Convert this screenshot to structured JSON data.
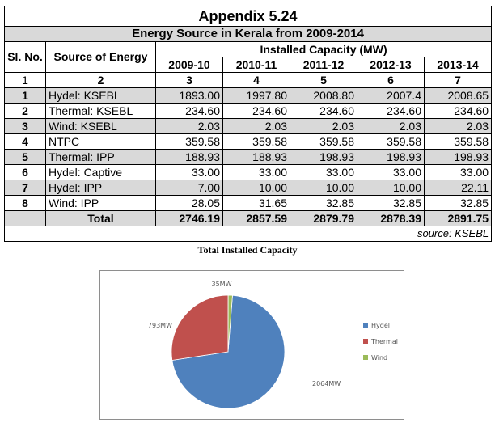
{
  "appendix_title": "Appendix 5.24",
  "table_title": "Energy Source in Kerala from 2009-2014",
  "headers": {
    "sl_no": "Sl. No.",
    "source": "Source of Energy",
    "capacity": "Installed Capacity (MW)",
    "years": [
      "2009-10",
      "2010-11",
      "2011-12",
      "2012-13",
      "2013-14"
    ]
  },
  "column_numbers": [
    "1",
    "2",
    "3",
    "4",
    "5",
    "6",
    "7"
  ],
  "rows": [
    {
      "sl": "1",
      "source": "Hydel: KSEBL",
      "values": [
        "1893.00",
        "1997.80",
        "2008.80",
        "2007.4",
        "2008.65"
      ]
    },
    {
      "sl": "2",
      "source": "Thermal: KSEBL",
      "values": [
        "234.60",
        "234.60",
        "234.60",
        "234.60",
        "234.60"
      ]
    },
    {
      "sl": "3",
      "source": "Wind: KSEBL",
      "values": [
        "2.03",
        "2.03",
        "2.03",
        "2.03",
        "2.03"
      ]
    },
    {
      "sl": "4",
      "source": "NTPC",
      "values": [
        "359.58",
        "359.58",
        "359.58",
        "359.58",
        "359.58"
      ]
    },
    {
      "sl": "5",
      "source": "Thermal: IPP",
      "values": [
        "188.93",
        "188.93",
        "198.93",
        "198.93",
        "198.93"
      ]
    },
    {
      "sl": "6",
      "source": "Hydel: Captive",
      "values": [
        "33.00",
        "33.00",
        "33.00",
        "33.00",
        "33.00"
      ]
    },
    {
      "sl": "7",
      "source": "Hydel: IPP",
      "values": [
        "7.00",
        "10.00",
        "10.00",
        "10.00",
        "22.11"
      ]
    },
    {
      "sl": "8",
      "source": "Wind: IPP",
      "values": [
        "28.05",
        "31.65",
        "32.85",
        "32.85",
        "32.85"
      ]
    }
  ],
  "total": {
    "label": "Total",
    "values": [
      "2746.19",
      "2857.59",
      "2879.79",
      "2878.39",
      "2891.75"
    ]
  },
  "source_note": "source: KSEBL",
  "chart_data": {
    "type": "pie",
    "title": "Total Installed Capacity",
    "categories": [
      "Hydel",
      "Thermal",
      "Wind"
    ],
    "values": [
      2064,
      793,
      35
    ],
    "data_labels": [
      "2064MW",
      "793MW",
      "35MW"
    ],
    "colors": [
      "#4f81bd",
      "#c0504d",
      "#9bbb59"
    ],
    "legend": "right"
  }
}
